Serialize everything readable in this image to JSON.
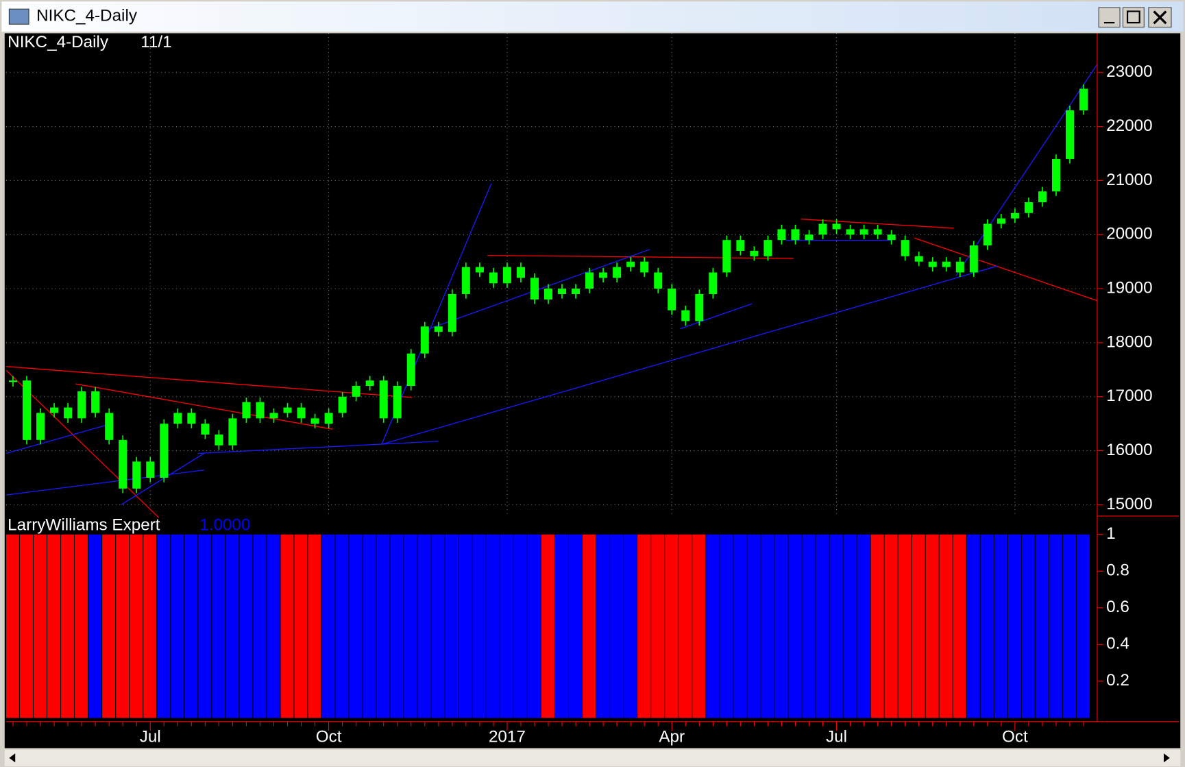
{
  "window": {
    "title": "NIKC_4-Daily"
  },
  "chart_data": [
    {
      "type": "candlestick",
      "title": "NIKC_4-Daily",
      "subtitle": "11/1",
      "categories": [
        null,
        null,
        null,
        null,
        null,
        null,
        null,
        null,
        null,
        null,
        "Jul",
        null,
        null,
        null,
        null,
        null,
        null,
        null,
        null,
        null,
        null,
        null,
        null,
        "Oct",
        null,
        null,
        null,
        null,
        null,
        null,
        null,
        null,
        null,
        null,
        null,
        null,
        "2017",
        null,
        null,
        null,
        null,
        null,
        null,
        null,
        null,
        null,
        null,
        null,
        "Apr",
        null,
        null,
        null,
        null,
        null,
        null,
        null,
        null,
        null,
        null,
        null,
        "Jul",
        null,
        null,
        null,
        null,
        null,
        null,
        null,
        null,
        null,
        null,
        null,
        null,
        "Oct",
        null,
        null,
        null,
        null,
        null
      ],
      "values": [
        17300,
        16200,
        16700,
        16800,
        16600,
        17100,
        16700,
        16200,
        15300,
        15800,
        15500,
        16500,
        16700,
        16500,
        16300,
        16100,
        16600,
        16900,
        16600,
        16700,
        16800,
        16600,
        16500,
        16700,
        17000,
        17200,
        17300,
        16600,
        17200,
        17800,
        18300,
        18200,
        18900,
        19400,
        19300,
        19100,
        19400,
        19200,
        18800,
        19000,
        18900,
        19000,
        19300,
        19200,
        19400,
        19500,
        19300,
        19000,
        18600,
        18400,
        18900,
        19300,
        19900,
        19700,
        19600,
        19900,
        20100,
        19900,
        20000,
        20200,
        20100,
        20000,
        20100,
        20000,
        19900,
        19600,
        19500,
        19400,
        19500,
        19300,
        19800,
        20200,
        20300,
        20400,
        20600,
        20800,
        21400,
        22300,
        22700
      ],
      "color": "#00ff00",
      "ylim": [
        14790,
        23727
      ],
      "yticks": [
        15000,
        16000,
        17000,
        18000,
        19000,
        20000,
        21000,
        22000,
        23000
      ],
      "grid": true
    },
    {
      "type": "bar",
      "title": "LarryWilliams Expert",
      "value_label": "1.0000",
      "values": [
        1,
        1,
        1,
        1,
        1,
        1,
        1,
        1,
        1,
        1,
        1,
        1,
        1,
        1,
        1,
        1,
        1,
        1,
        1,
        1,
        1,
        1,
        1,
        1,
        1,
        1,
        1,
        1,
        1,
        1,
        1,
        1,
        1,
        1,
        1,
        1,
        1,
        1,
        1,
        1,
        1,
        1,
        1,
        1,
        1,
        1,
        1,
        1,
        1,
        1,
        1,
        1,
        1,
        1,
        1,
        1,
        1,
        1,
        1,
        1,
        1,
        1,
        1,
        1,
        1,
        1,
        1,
        1,
        1,
        1,
        1,
        1,
        1,
        1,
        1,
        1,
        1,
        1,
        1
      ],
      "colors": [
        "#ff0000",
        "#ff0000",
        "#ff0000",
        "#ff0000",
        "#ff0000",
        "#ff0000",
        "#0000ff",
        "#ff0000",
        "#ff0000",
        "#ff0000",
        "#ff0000",
        "#0000ff",
        "#0000ff",
        "#0000ff",
        "#0000ff",
        "#0000ff",
        "#0000ff",
        "#0000ff",
        "#0000ff",
        "#0000ff",
        "#ff0000",
        "#ff0000",
        "#ff0000",
        "#0000ff",
        "#0000ff",
        "#0000ff",
        "#0000ff",
        "#0000ff",
        "#0000ff",
        "#0000ff",
        "#0000ff",
        "#0000ff",
        "#0000ff",
        "#0000ff",
        "#0000ff",
        "#0000ff",
        "#0000ff",
        "#0000ff",
        "#0000ff",
        "#ff0000",
        "#0000ff",
        "#0000ff",
        "#ff0000",
        "#0000ff",
        "#0000ff",
        "#0000ff",
        "#ff0000",
        "#ff0000",
        "#ff0000",
        "#ff0000",
        "#ff0000",
        "#0000ff",
        "#0000ff",
        "#0000ff",
        "#0000ff",
        "#0000ff",
        "#0000ff",
        "#0000ff",
        "#0000ff",
        "#0000ff",
        "#0000ff",
        "#0000ff",
        "#0000ff",
        "#ff0000",
        "#ff0000",
        "#ff0000",
        "#ff0000",
        "#ff0000",
        "#ff0000",
        "#ff0000",
        "#0000ff",
        "#0000ff",
        "#0000ff",
        "#0000ff",
        "#0000ff",
        "#0000ff",
        "#0000ff",
        "#0000ff",
        "#0000ff"
      ],
      "ylim": [
        0,
        1.1
      ],
      "yticks": [
        0.2,
        0.4,
        0.6,
        0.8,
        1
      ]
    }
  ]
}
